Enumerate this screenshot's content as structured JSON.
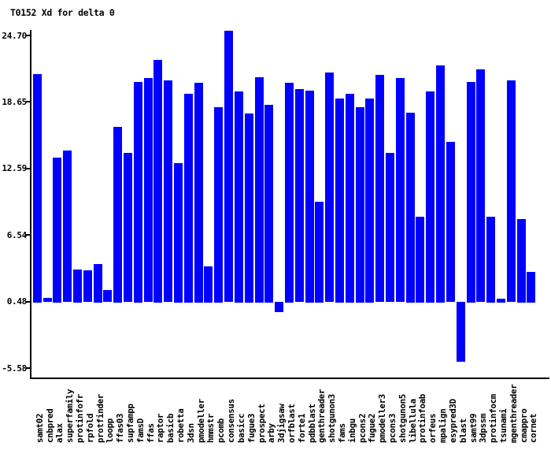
{
  "title": "T0152 Xd for delta 0",
  "colors": {
    "bar": "#0000ff",
    "axis": "#000000",
    "text": "#000000",
    "background": "#ffffff"
  },
  "chart_data": {
    "type": "bar",
    "title": "T0152 Xd for delta 0",
    "xlabel": "",
    "ylabel": "",
    "grid": false,
    "legend": "none",
    "bar_color": "#0000ff",
    "baseline": 0.48,
    "ylim": [
      -6.5,
      25.2
    ],
    "ytick_labels": [
      "24.70",
      "18.65",
      "12.59",
      "6.54",
      "0.48",
      "-5.58"
    ],
    "ytick_values": [
      24.7,
      18.65,
      12.59,
      6.54,
      0.48,
      -5.58
    ],
    "categories": [
      "samt02",
      "cnbpred",
      "alax",
      "superfamily",
      "protinfofr",
      "rpfold",
      "protfinder",
      "loopp",
      "ffas03",
      "supfampp",
      "famsD",
      "ffas",
      "raptor",
      "basicb",
      "robetta",
      "3dsn",
      "pmodeller",
      "hmmstr",
      "pcomb",
      "consensus",
      "basicc",
      "fugue3",
      "prospect",
      "arby",
      "3djigsaw",
      "orfblast",
      "forte1",
      "pdbblast",
      "genthreader",
      "shotgunon3",
      "fams",
      "inbgu",
      "pcons2",
      "fugue2",
      "pmodeller3",
      "pcons3",
      "shotgunon5",
      "libellula",
      "protinfoab",
      "orfeus",
      "mpalign",
      "esypred3D",
      "blast",
      "samt99",
      "3dpssm",
      "protinfocm",
      "tsunami",
      "mgenthreader",
      "cmappro",
      "cornet"
    ],
    "values": [
      21.2,
      0.8,
      13.6,
      14.2,
      3.4,
      3.3,
      3.9,
      1.5,
      16.4,
      14.0,
      20.5,
      20.8,
      22.5,
      20.6,
      13.1,
      19.4,
      20.4,
      3.7,
      18.2,
      25.1,
      19.6,
      17.6,
      20.9,
      18.4,
      -0.4,
      20.4,
      19.8,
      19.7,
      9.6,
      21.3,
      19.0,
      19.4,
      18.2,
      19.0,
      21.1,
      14.0,
      20.8,
      17.7,
      8.2,
      19.6,
      22.0,
      15.0,
      -4.9,
      20.5,
      21.6,
      8.2,
      0.75,
      20.6,
      8.0,
      3.2
    ]
  }
}
